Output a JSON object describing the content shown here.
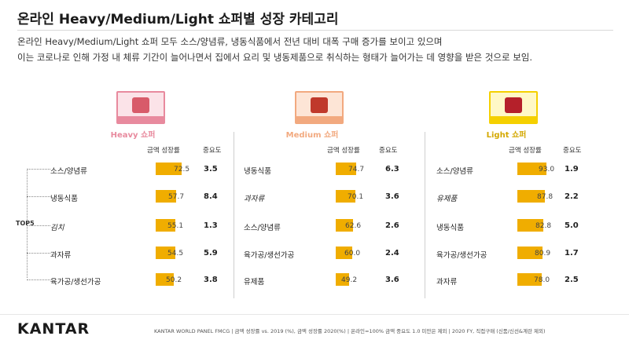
{
  "title": "온라인 Heavy/Medium/Light 쇼퍼별 성장 카테고리",
  "subtitle_line1": "온라인 Heavy/Medium/Light 쇼퍼 모두 소스/양념류, 냉동식품에서 전년 대비 대폭 구매 증가를 보이고 있으며",
  "subtitle_line2": "이는 코로나로 인해 가정 내 체류 기간이 늘어나면서 집에서 요리 및 냉동제품으로 취식하는 형태가 늘어가는 데 영향을 받은 것으로 보임.",
  "tops_label": "TOP5",
  "column_headers": {
    "growth": "금액 성장률",
    "importance": "중요도"
  },
  "colors": {
    "bar": "#f0ad00",
    "heavy": "#e88a9e",
    "medium": "#f2a97f",
    "light": "#f5d000"
  },
  "footer": {
    "logo": "KANTAR",
    "note": "KANTAR WORLD PANEL FMCG | 금액 성장률 vs. 2019 (%), 금액 성장률 2020(%) | 온라인=100% 금액 중요도 1.0 미만은 제외 | 2020 FY, 직접구매 (신품/신선&계란 제외)"
  },
  "chart_data": [
    {
      "type": "bar",
      "name": "Heavy 쇼퍼",
      "icon": "shopping-cart-icon",
      "categories": [
        "소스/양념류",
        "냉동식품",
        "김치",
        "과자류",
        "육가공/생선가공"
      ],
      "values": [
        72.5,
        57.7,
        55.1,
        54.5,
        50.2
      ],
      "value_labels": [
        "72.5",
        "57.7",
        "55.1",
        "54.5",
        "50.2"
      ],
      "importance": [
        "3.5",
        "8.4",
        "1.3",
        "5.9",
        "3.8"
      ],
      "italic": [
        false,
        false,
        true,
        false,
        false
      ]
    },
    {
      "type": "bar",
      "name": "Medium 쇼퍼",
      "icon": "shopping-basket-icon",
      "categories": [
        "냉동식품",
        "과자류",
        "소스/양념류",
        "육가공/생선가공",
        "유제품"
      ],
      "values": [
        74.7,
        70.1,
        62.6,
        60.0,
        49.2
      ],
      "value_labels": [
        "74.7",
        "70.1",
        "62.6",
        "60.0",
        "49.2"
      ],
      "importance": [
        "6.3",
        "3.6",
        "2.6",
        "2.4",
        "3.6"
      ],
      "italic": [
        false,
        true,
        false,
        false,
        false
      ]
    },
    {
      "type": "bar",
      "name": "Light 쇼퍼",
      "icon": "bottle-and-banana-icon",
      "categories": [
        "소스/양념류",
        "유제품",
        "냉동식품",
        "육가공/생선가공",
        "과자류"
      ],
      "values": [
        93.0,
        87.8,
        82.8,
        80.9,
        78.0
      ],
      "value_labels": [
        "93.0",
        "87.8",
        "82.8",
        "80.9",
        "78.0"
      ],
      "importance": [
        "1.9",
        "2.2",
        "5.0",
        "1.7",
        "2.5"
      ],
      "italic": [
        false,
        true,
        false,
        false,
        false
      ]
    }
  ]
}
